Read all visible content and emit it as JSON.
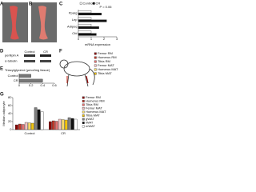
{
  "panel_labels": [
    "A",
    "B",
    "C",
    "D",
    "E",
    "F",
    "G"
  ],
  "blot": {
    "columns": [
      "Control",
      "CR"
    ],
    "rows": [
      "perilipin A",
      "α-tubulin"
    ]
  },
  "chart_data": [
    {
      "type": "bar",
      "orientation": "horizontal",
      "annotation": "P = 0.06",
      "xlabel": "mRNA expression",
      "categories": [
        "Pparg",
        "Lep",
        "Adipoq",
        "Cfd"
      ],
      "series": [
        {
          "name": "Control",
          "color": "#ffffff",
          "values": [
            1,
            1,
            1,
            1
          ]
        },
        {
          "name": "CR",
          "color": "#111111",
          "values": [
            1.8,
            2.2,
            1.6,
            1.4
          ]
        }
      ],
      "xlim": [
        0,
        3
      ],
      "xticks": [
        0,
        1,
        2,
        3
      ]
    },
    {
      "type": "bar",
      "orientation": "horizontal",
      "title": "Triacylglycerol (µmol/mg tissue)",
      "categories": [
        "Control",
        "CR"
      ],
      "values": [
        0.2,
        0.4
      ],
      "color": "#777777",
      "xlim": [
        0,
        0.6
      ],
      "xticks": [
        0,
        0.2,
        0.4,
        0.6
      ]
    },
    {
      "type": "bar",
      "orientation": "vertical",
      "ylabel": "Median adipocyte",
      "categories": [
        "Control",
        "CR"
      ],
      "series": [
        {
          "name": "Femur RM",
          "color": "#8b0000",
          "values": [
            12,
            20
          ]
        },
        {
          "name": "Humerus RM",
          "color": "#c0392b",
          "values": [
            14,
            22
          ]
        },
        {
          "name": "Tibia RM",
          "color": "#e57373",
          "values": [
            13,
            21
          ]
        },
        {
          "name": "Femur MAT",
          "color": "#f4c2c2",
          "values": [
            18,
            26
          ]
        },
        {
          "name": "Humerus MAT",
          "color": "#f7dc6f",
          "values": [
            17,
            25
          ]
        },
        {
          "name": "Tibia MAT",
          "color": "#f1c40f",
          "values": [
            16,
            24
          ]
        },
        {
          "name": "gWAT",
          "color": "#808080",
          "values": [
            55,
            30
          ]
        },
        {
          "name": "iWAT",
          "color": "#111111",
          "values": [
            50,
            28
          ]
        },
        {
          "name": "mWAT",
          "color": "#ffffff",
          "values": [
            45,
            26
          ]
        }
      ],
      "ylim": [
        0,
        80
      ],
      "yticks": [
        0,
        20,
        40,
        60,
        80
      ]
    }
  ]
}
